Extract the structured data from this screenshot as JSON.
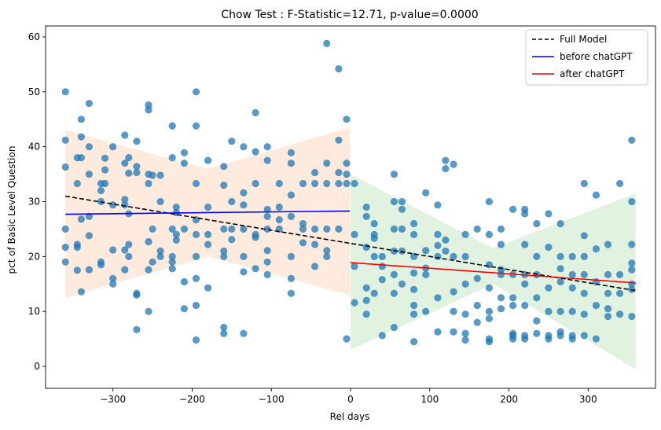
{
  "chart_data": {
    "type": "scatter",
    "title": "Chow Test : F-Statistic=12.71, p-value=0.0000",
    "xlabel": "Rel days",
    "ylabel": "pct of Basic Level Question",
    "xlim": [
      -385,
      385
    ],
    "ylim": [
      -4,
      62
    ],
    "xticks": [
      -300,
      -200,
      -100,
      0,
      100,
      200,
      300
    ],
    "xtick_labels": [
      "−300",
      "−200",
      "−100",
      "0",
      "100",
      "200",
      "300"
    ],
    "yticks": [
      0,
      10,
      20,
      30,
      40,
      50,
      60
    ],
    "ytick_labels": [
      "0",
      "10",
      "20",
      "30",
      "40",
      "50",
      "60"
    ],
    "legend_position": "top-right",
    "colors": {
      "points": "#1f77b4",
      "full_model": "#000000",
      "before": "#0000ff",
      "after": "#ff0000",
      "before_band": "#fde3cf",
      "after_band": "#d4ecd4"
    },
    "lines": [
      {
        "name": "Full Model",
        "style": "dashed",
        "color": "#000000",
        "x": [
          -360,
          360
        ],
        "y": [
          31.0,
          13.8
        ]
      },
      {
        "name": "before chatGPT",
        "style": "solid",
        "color": "#0000ff",
        "x": [
          -360,
          -1
        ],
        "y": [
          27.7,
          28.3
        ]
      },
      {
        "name": "after chatGPT",
        "style": "solid",
        "color": "#ff0000",
        "x": [
          0,
          360
        ],
        "y": [
          18.9,
          15.2
        ]
      }
    ],
    "bands": [
      {
        "name": "before chatGPT",
        "x": [
          -360,
          -180,
          -1
        ],
        "upper": [
          43.0,
          36.0,
          43.5
        ],
        "lower": [
          12.5,
          20.0,
          13.0
        ]
      },
      {
        "name": "after chatGPT",
        "x": [
          0,
          180,
          360
        ],
        "upper": [
          35.0,
          21.5,
          31.5
        ],
        "lower": [
          3.0,
          15.0,
          -0.5
        ]
      }
    ],
    "points": [
      [
        -360,
        50.0
      ],
      [
        -360,
        41.2
      ],
      [
        -360,
        36.3
      ],
      [
        -360,
        25.0
      ],
      [
        -360,
        21.7
      ],
      [
        -360,
        19.0
      ],
      [
        -345,
        38.0
      ],
      [
        -345,
        33.3
      ],
      [
        -345,
        22.2
      ],
      [
        -345,
        21.7
      ],
      [
        -345,
        17.5
      ],
      [
        -340,
        45.0
      ],
      [
        -340,
        41.8
      ],
      [
        -340,
        38.0
      ],
      [
        -340,
        26.8
      ],
      [
        -340,
        13.6
      ],
      [
        -330,
        47.9
      ],
      [
        -330,
        40.0
      ],
      [
        -330,
        35.0
      ],
      [
        -330,
        27.3
      ],
      [
        -330,
        23.8
      ],
      [
        -330,
        17.6
      ],
      [
        -315,
        33.3
      ],
      [
        -315,
        32.0
      ],
      [
        -315,
        30.0
      ],
      [
        -315,
        19.0
      ],
      [
        -315,
        18.5
      ],
      [
        -310,
        37.9
      ],
      [
        -310,
        35.8
      ],
      [
        -310,
        33.3
      ],
      [
        -300,
        40.0
      ],
      [
        -300,
        29.4
      ],
      [
        -300,
        21.2
      ],
      [
        -300,
        16.0
      ],
      [
        -300,
        15.0
      ],
      [
        -285,
        42.1
      ],
      [
        -285,
        37.0
      ],
      [
        -285,
        30.4
      ],
      [
        -285,
        29.4
      ],
      [
        -285,
        21.2
      ],
      [
        -285,
        17.6
      ],
      [
        -280,
        38.0
      ],
      [
        -280,
        35.2
      ],
      [
        -280,
        27.8
      ],
      [
        -280,
        22.2
      ],
      [
        -280,
        20.0
      ],
      [
        -270,
        41.0
      ],
      [
        -270,
        36.4
      ],
      [
        -270,
        35.3
      ],
      [
        -270,
        13.3
      ],
      [
        -270,
        13.0
      ],
      [
        -270,
        6.7
      ],
      [
        -255,
        47.6
      ],
      [
        -255,
        46.7
      ],
      [
        -255,
        35.0
      ],
      [
        -255,
        33.3
      ],
      [
        -255,
        22.7
      ],
      [
        -255,
        17.6
      ],
      [
        -255,
        10.0
      ],
      [
        -250,
        34.8
      ],
      [
        -250,
        25.0
      ],
      [
        -250,
        19.0
      ],
      [
        -240,
        34.8
      ],
      [
        -240,
        30.0
      ],
      [
        -240,
        21.0
      ],
      [
        -240,
        20.0
      ],
      [
        -225,
        43.8
      ],
      [
        -225,
        38.0
      ],
      [
        -225,
        25.0
      ],
      [
        -225,
        20.0
      ],
      [
        -225,
        19.0
      ],
      [
        -225,
        17.8
      ],
      [
        -220,
        29.0
      ],
      [
        -220,
        28.0
      ],
      [
        -220,
        24.0
      ],
      [
        -220,
        23.0
      ],
      [
        -210,
        38.9
      ],
      [
        -210,
        37.0
      ],
      [
        -210,
        25.0
      ],
      [
        -210,
        15.4
      ],
      [
        -210,
        10.5
      ],
      [
        -195,
        50.0
      ],
      [
        -195,
        43.8
      ],
      [
        -195,
        33.3
      ],
      [
        -195,
        26.7
      ],
      [
        -195,
        24.0
      ],
      [
        -195,
        20.0
      ],
      [
        -195,
        16.0
      ],
      [
        -195,
        11.1
      ],
      [
        -195,
        4.8
      ],
      [
        -180,
        37.5
      ],
      [
        -180,
        29.0
      ],
      [
        -180,
        24.0
      ],
      [
        -180,
        22.2
      ],
      [
        -180,
        14.3
      ],
      [
        -160,
        36.4
      ],
      [
        -160,
        33.0
      ],
      [
        -160,
        25.0
      ],
      [
        -160,
        21.0
      ],
      [
        -160,
        20.0
      ],
      [
        -160,
        6.0
      ],
      [
        -160,
        7.1
      ],
      [
        -150,
        41.0
      ],
      [
        -150,
        30.0
      ],
      [
        -150,
        25.0
      ],
      [
        -150,
        23.1
      ],
      [
        -135,
        40.0
      ],
      [
        -135,
        31.6
      ],
      [
        -135,
        29.4
      ],
      [
        -135,
        25.0
      ],
      [
        -135,
        20.0
      ],
      [
        -135,
        17.2
      ],
      [
        -135,
        6.0
      ],
      [
        -120,
        46.2
      ],
      [
        -120,
        39.1
      ],
      [
        -120,
        33.3
      ],
      [
        -120,
        24.0
      ],
      [
        -120,
        23.5
      ],
      [
        -120,
        17.8
      ],
      [
        -105,
        40.0
      ],
      [
        -105,
        37.5
      ],
      [
        -105,
        28.6
      ],
      [
        -105,
        27.3
      ],
      [
        -105,
        25.0
      ],
      [
        -105,
        21.1
      ],
      [
        -105,
        19.0
      ],
      [
        -105,
        16.7
      ],
      [
        -90,
        33.3
      ],
      [
        -90,
        29.0
      ],
      [
        -90,
        26.7
      ],
      [
        -90,
        25.0
      ],
      [
        -75,
        38.9
      ],
      [
        -75,
        37.0
      ],
      [
        -75,
        31.2
      ],
      [
        -75,
        27.3
      ],
      [
        -75,
        20.0
      ],
      [
        -75,
        16.0
      ],
      [
        -75,
        13.3
      ],
      [
        -60,
        33.3
      ],
      [
        -60,
        26.0
      ],
      [
        -60,
        25.0
      ],
      [
        -60,
        22.5
      ],
      [
        -45,
        35.3
      ],
      [
        -45,
        33.3
      ],
      [
        -45,
        25.0
      ],
      [
        -45,
        22.2
      ],
      [
        -45,
        18.2
      ],
      [
        -30,
        58.8
      ],
      [
        -30,
        37.0
      ],
      [
        -30,
        33.3
      ],
      [
        -30,
        25.0
      ],
      [
        -30,
        21.1
      ],
      [
        -30,
        20.0
      ],
      [
        -15,
        54.2
      ],
      [
        -15,
        41.2
      ],
      [
        -15,
        35.3
      ],
      [
        -15,
        33.3
      ],
      [
        -15,
        25.0
      ],
      [
        -5,
        45.0
      ],
      [
        -5,
        37.0
      ],
      [
        -5,
        35.0
      ],
      [
        -5,
        33.3
      ],
      [
        -5,
        5.0
      ],
      [
        5,
        33.3
      ],
      [
        5,
        24.0
      ],
      [
        5,
        18.2
      ],
      [
        5,
        11.6
      ],
      [
        20,
        29.0
      ],
      [
        20,
        27.3
      ],
      [
        20,
        21.7
      ],
      [
        20,
        14.3
      ],
      [
        20,
        12.0
      ],
      [
        20,
        9.5
      ],
      [
        30,
        26.0
      ],
      [
        30,
        24.0
      ],
      [
        30,
        23.3
      ],
      [
        30,
        20.0
      ],
      [
        30,
        13.3
      ],
      [
        40,
        20.0
      ],
      [
        40,
        18.2
      ],
      [
        40,
        15.8
      ],
      [
        40,
        5.6
      ],
      [
        55,
        35.0
      ],
      [
        55,
        30.0
      ],
      [
        55,
        25.0
      ],
      [
        55,
        21.0
      ],
      [
        55,
        16.7
      ],
      [
        55,
        13.3
      ],
      [
        55,
        7.1
      ],
      [
        65,
        30.0
      ],
      [
        65,
        28.6
      ],
      [
        65,
        25.0
      ],
      [
        65,
        21.0
      ],
      [
        65,
        15.0
      ],
      [
        80,
        26.0
      ],
      [
        80,
        24.0
      ],
      [
        80,
        20.0
      ],
      [
        80,
        17.0
      ],
      [
        80,
        14.0
      ],
      [
        80,
        11.1
      ],
      [
        80,
        9.5
      ],
      [
        80,
        4.5
      ],
      [
        95,
        31.6
      ],
      [
        95,
        21.1
      ],
      [
        95,
        17.9
      ],
      [
        95,
        16.7
      ],
      [
        95,
        10.0
      ],
      [
        110,
        29.4
      ],
      [
        110,
        24.0
      ],
      [
        110,
        22.0
      ],
      [
        110,
        20.0
      ],
      [
        110,
        12.5
      ],
      [
        110,
        6.3
      ],
      [
        120,
        37.5
      ],
      [
        120,
        36.0
      ],
      [
        120,
        23.0
      ],
      [
        120,
        21.0
      ],
      [
        130,
        36.8
      ],
      [
        130,
        20.0
      ],
      [
        130,
        13.6
      ],
      [
        130,
        10.0
      ],
      [
        130,
        6.3
      ],
      [
        145,
        24.0
      ],
      [
        145,
        20.0
      ],
      [
        145,
        15.0
      ],
      [
        145,
        9.5
      ],
      [
        145,
        6.0
      ],
      [
        145,
        4.8
      ],
      [
        160,
        25.0
      ],
      [
        160,
        16.0
      ],
      [
        160,
        11.1
      ],
      [
        160,
        8.0
      ],
      [
        175,
        30.0
      ],
      [
        175,
        24.0
      ],
      [
        175,
        18.5
      ],
      [
        175,
        14.3
      ],
      [
        175,
        10.0
      ],
      [
        175,
        8.7
      ],
      [
        175,
        5.0
      ],
      [
        175,
        4.5
      ],
      [
        190,
        25.0
      ],
      [
        190,
        22.2
      ],
      [
        190,
        17.6
      ],
      [
        190,
        16.7
      ],
      [
        190,
        12.5
      ],
      [
        190,
        10.5
      ],
      [
        205,
        28.6
      ],
      [
        205,
        16.7
      ],
      [
        205,
        12.5
      ],
      [
        205,
        11.1
      ],
      [
        205,
        6.0
      ],
      [
        205,
        5.6
      ],
      [
        205,
        5.0
      ],
      [
        220,
        28.6
      ],
      [
        220,
        27.8
      ],
      [
        220,
        22.2
      ],
      [
        220,
        16.7
      ],
      [
        220,
        15.0
      ],
      [
        220,
        11.1
      ],
      [
        220,
        5.6
      ],
      [
        220,
        5.0
      ],
      [
        235,
        26.0
      ],
      [
        235,
        20.0
      ],
      [
        235,
        16.7
      ],
      [
        235,
        12.5
      ],
      [
        235,
        8.3
      ],
      [
        235,
        6.0
      ],
      [
        250,
        27.8
      ],
      [
        250,
        21.7
      ],
      [
        250,
        14.3
      ],
      [
        250,
        10.0
      ],
      [
        250,
        5.6
      ],
      [
        250,
        5.0
      ],
      [
        265,
        26.0
      ],
      [
        265,
        20.0
      ],
      [
        265,
        17.8
      ],
      [
        265,
        15.4
      ],
      [
        265,
        10.0
      ],
      [
        265,
        6.3
      ],
      [
        265,
        5.6
      ],
      [
        280,
        20.0
      ],
      [
        280,
        16.7
      ],
      [
        280,
        14.3
      ],
      [
        280,
        10.0
      ],
      [
        280,
        5.6
      ],
      [
        280,
        5.0
      ],
      [
        295,
        33.3
      ],
      [
        295,
        23.8
      ],
      [
        295,
        20.0
      ],
      [
        295,
        16.7
      ],
      [
        295,
        13.3
      ],
      [
        295,
        9.5
      ],
      [
        295,
        5.6
      ],
      [
        310,
        31.2
      ],
      [
        310,
        21.4
      ],
      [
        310,
        15.4
      ],
      [
        310,
        11.1
      ],
      [
        310,
        5.0
      ],
      [
        325,
        22.2
      ],
      [
        325,
        16.7
      ],
      [
        325,
        13.3
      ],
      [
        325,
        10.5
      ],
      [
        325,
        9.1
      ],
      [
        340,
        33.3
      ],
      [
        340,
        16.7
      ],
      [
        340,
        13.3
      ],
      [
        340,
        9.5
      ],
      [
        355,
        41.2
      ],
      [
        355,
        30.0
      ],
      [
        355,
        22.2
      ],
      [
        355,
        18.8
      ],
      [
        355,
        17.6
      ],
      [
        355,
        15.0
      ],
      [
        355,
        9.1
      ],
      [
        355,
        14.0
      ]
    ]
  }
}
